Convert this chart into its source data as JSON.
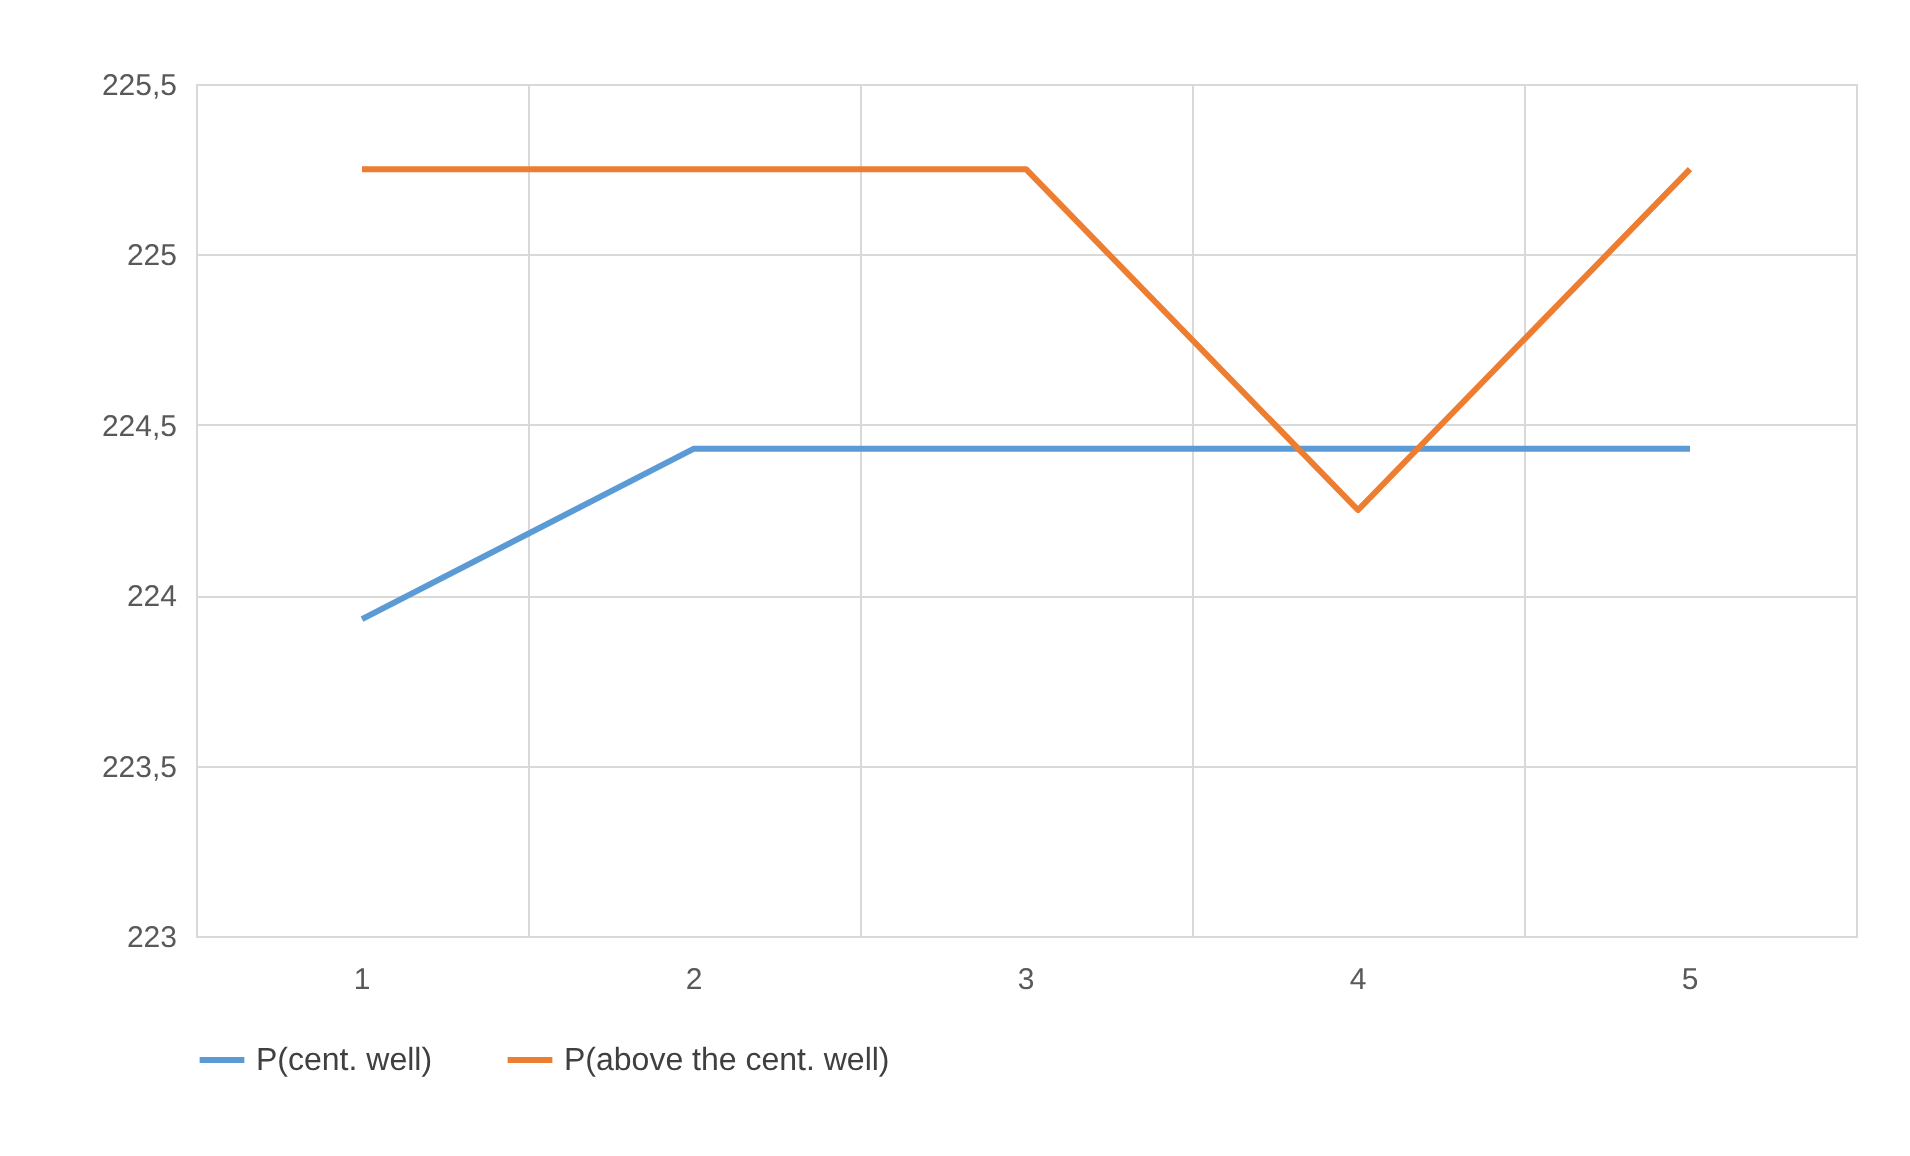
{
  "chart_data": {
    "type": "line",
    "categories": [
      "1",
      "2",
      "3",
      "4",
      "5"
    ],
    "series": [
      {
        "name": "P(cent. well)",
        "color": "#5b9bd5",
        "values": [
          223.93,
          224.43,
          224.43,
          224.43,
          224.43
        ]
      },
      {
        "name": "P(above the cent. well)",
        "color": "#ed7d31",
        "values": [
          225.25,
          225.25,
          225.25,
          224.25,
          225.25
        ]
      }
    ],
    "ylim": [
      223,
      225.5
    ],
    "yticks": [
      223,
      {
        "value": 223.5,
        "label": "223,5"
      },
      224,
      {
        "value": 224.5,
        "label": "224,5"
      },
      225,
      {
        "value": 225.5,
        "label": "225,5"
      }
    ],
    "grid": true,
    "legend": "bottom",
    "line_style": "solid"
  }
}
